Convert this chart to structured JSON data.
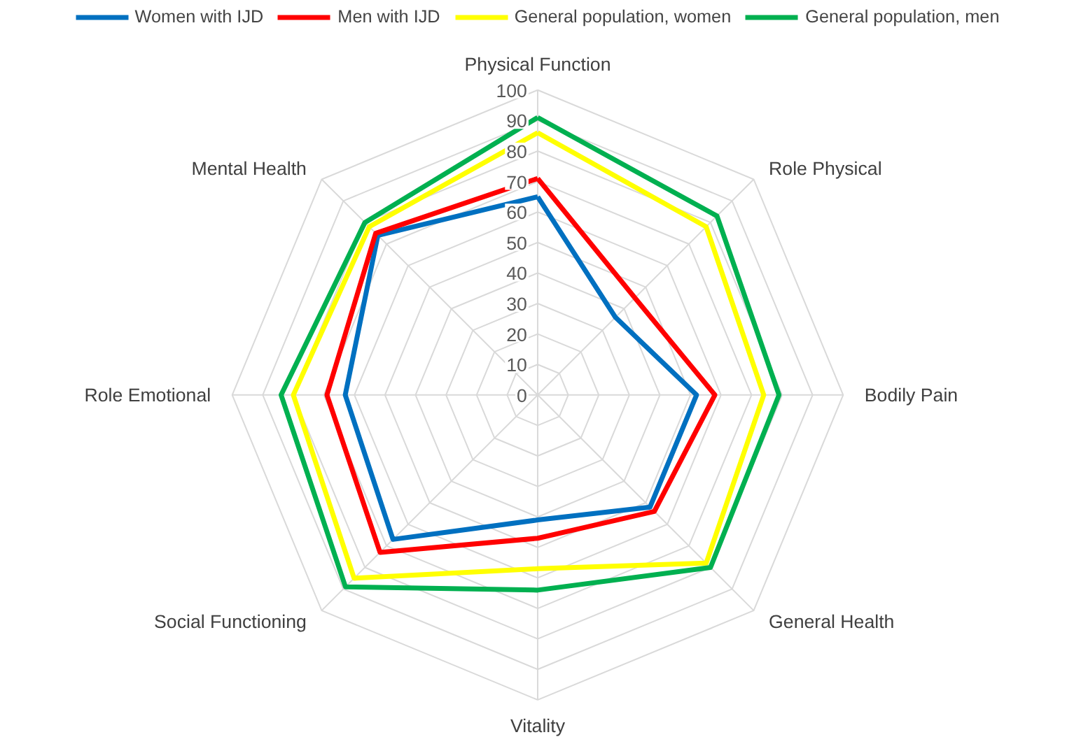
{
  "chart_data": {
    "type": "radar",
    "categories": [
      "Physical Function",
      "Role Physical",
      "Bodily Pain",
      "General Health",
      "Vitality",
      "Social Functioning",
      "Role Emotional",
      "Mental Health"
    ],
    "series": [
      {
        "name": "Women with IJD",
        "color": "#0070c0",
        "values": [
          65,
          36,
          52,
          52,
          41,
          67,
          63,
          74
        ]
      },
      {
        "name": "Men with IJD",
        "color": "#ff0000",
        "values": [
          71,
          45,
          58,
          54,
          47,
          73,
          69,
          75
        ]
      },
      {
        "name": "General population, women",
        "color": "#ffff00",
        "values": [
          86,
          78,
          74,
          78,
          57,
          85,
          80,
          78
        ]
      },
      {
        "name": "General population, men",
        "color": "#00b050",
        "values": [
          91,
          83,
          79,
          80,
          64,
          89,
          84,
          80
        ]
      }
    ],
    "ylim": [
      0,
      100
    ],
    "yticks": [
      0,
      10,
      20,
      30,
      40,
      50,
      60,
      70,
      80,
      90,
      100
    ],
    "grid": true,
    "legend": "top"
  }
}
